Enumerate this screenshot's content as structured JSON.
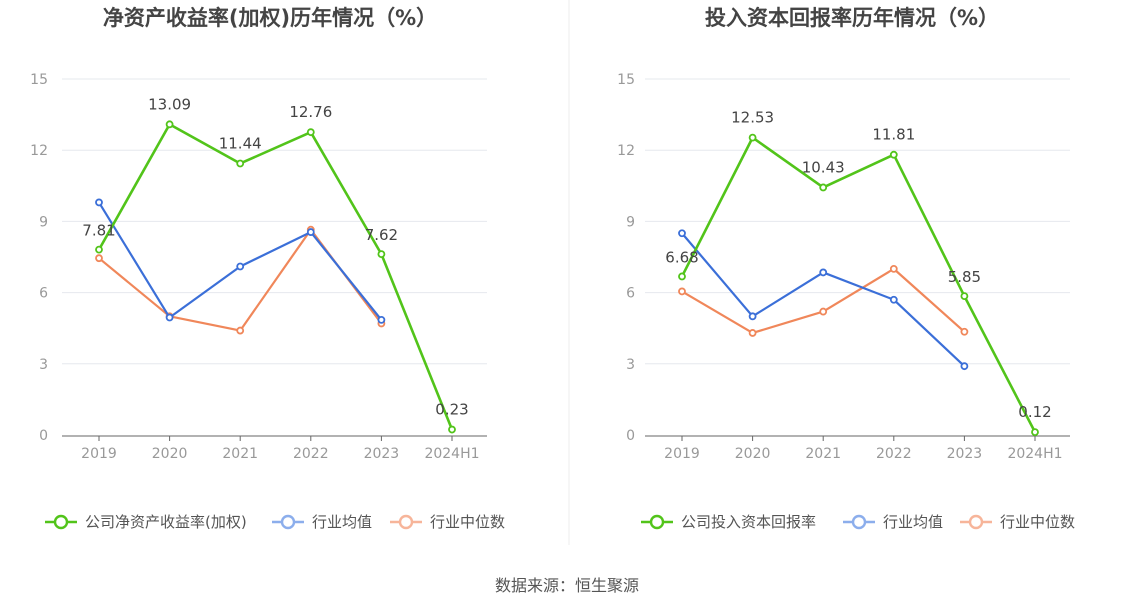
{
  "colors": {
    "company": "#52c41a",
    "average": "#3b6fd8",
    "median": "#f0875a",
    "average_legend": "#8caeec",
    "median_legend": "#f7b59a",
    "grid": "#e6e8ee",
    "axis": "#666666"
  },
  "source": "数据来源：恒生聚源",
  "chart_data": [
    {
      "type": "line",
      "title": "净资产收益率(加权)历年情况（%）",
      "categories": [
        "2019",
        "2020",
        "2021",
        "2022",
        "2023",
        "2024H1"
      ],
      "ylim": [
        0,
        15
      ],
      "yticks": [
        0,
        3,
        6,
        9,
        12,
        15
      ],
      "grid": true,
      "legend_position": "bottom",
      "series": [
        {
          "name": "公司净资产收益率(加权)",
          "values": [
            7.81,
            13.09,
            11.44,
            12.76,
            7.62,
            0.23
          ],
          "labels": [
            "7.81",
            "13.09",
            "11.44",
            "12.76",
            "7.62",
            "0.23"
          ]
        },
        {
          "name": "行业均值",
          "values": [
            9.8,
            4.95,
            7.1,
            8.55,
            4.85,
            null
          ]
        },
        {
          "name": "行业中位数",
          "values": [
            7.45,
            5.0,
            4.4,
            8.65,
            4.7,
            null
          ]
        }
      ]
    },
    {
      "type": "line",
      "title": "投入资本回报率历年情况（%）",
      "categories": [
        "2019",
        "2020",
        "2021",
        "2022",
        "2023",
        "2024H1"
      ],
      "ylim": [
        0,
        15
      ],
      "yticks": [
        0,
        3,
        6,
        9,
        12,
        15
      ],
      "grid": true,
      "legend_position": "bottom",
      "series": [
        {
          "name": "公司投入资本回报率",
          "values": [
            6.68,
            12.53,
            10.43,
            11.81,
            5.85,
            0.12
          ],
          "labels": [
            "6.68",
            "12.53",
            "10.43",
            "11.81",
            "5.85",
            "0.12"
          ]
        },
        {
          "name": "行业均值",
          "values": [
            8.5,
            5.0,
            6.85,
            5.7,
            2.9,
            null
          ]
        },
        {
          "name": "行业中位数",
          "values": [
            6.05,
            4.3,
            5.2,
            7.0,
            4.35,
            null
          ]
        }
      ]
    }
  ]
}
